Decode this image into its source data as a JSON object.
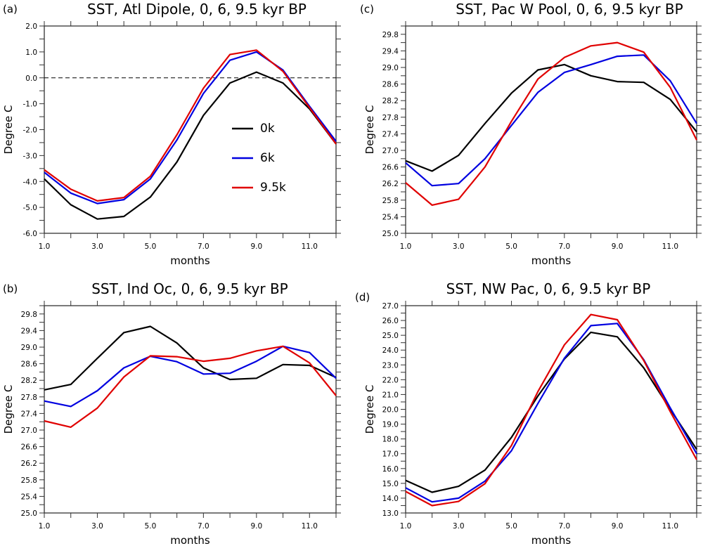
{
  "figure": {
    "series_colors": {
      "0k": "#000000",
      "6k": "#0000e0",
      "9.5k": "#e00000"
    }
  },
  "chart_data": [
    {
      "id": "a",
      "type": "line",
      "panel_label": "(a)",
      "title": "SST, Atl Dipole, 0, 6, 9.5 kyr BP",
      "xlabel": "months",
      "ylabel": "Degree C",
      "xlim": [
        1,
        12
      ],
      "ylim": [
        -6.0,
        2.0
      ],
      "xticks": [
        1.0,
        3.0,
        5.0,
        7.0,
        9.0,
        11.0
      ],
      "xtick_labels": [
        "1.0",
        "3.0",
        "5.0",
        "7.0",
        "9.0",
        "11.0"
      ],
      "yticks": [
        -6.0,
        -5.0,
        -4.0,
        -3.0,
        -2.0,
        -1.0,
        0.0,
        1.0,
        2.0
      ],
      "ytick_labels": [
        "-6.0",
        "-5.0",
        "-4.0",
        "-3.0",
        "-2.0",
        "-1.0",
        "0.0",
        "1.0",
        "2.0"
      ],
      "yminor_step": 0.5,
      "reference_line": {
        "y": 0.0,
        "style": "dashed"
      },
      "legend": {
        "placement": "center-right",
        "entries": [
          "0k",
          "6k",
          "9.5k"
        ]
      },
      "x": [
        1,
        2,
        3,
        4,
        5,
        6,
        7,
        8,
        9,
        10,
        11,
        12
      ],
      "series": [
        {
          "name": "0k",
          "color": "#000000",
          "values": [
            -3.9,
            -4.9,
            -5.45,
            -5.35,
            -4.6,
            -3.25,
            -1.45,
            -0.2,
            0.22,
            -0.2,
            -1.2,
            -2.55
          ]
        },
        {
          "name": "6k",
          "color": "#0000e0",
          "values": [
            -3.65,
            -4.45,
            -4.85,
            -4.7,
            -3.9,
            -2.4,
            -0.6,
            0.68,
            1.0,
            0.3,
            -1.1,
            -2.45
          ]
        },
        {
          "name": "9.5k",
          "color": "#e00000",
          "values": [
            -3.55,
            -4.3,
            -4.75,
            -4.62,
            -3.8,
            -2.2,
            -0.4,
            0.9,
            1.07,
            0.25,
            -1.15,
            -2.55
          ]
        }
      ]
    },
    {
      "id": "c",
      "type": "line",
      "panel_label": "(c)",
      "title": "SST, Pac W Pool, 0, 6, 9.5 kyr BP",
      "xlabel": "months",
      "ylabel": "Degree C",
      "xlim": [
        1,
        12
      ],
      "ylim": [
        25.0,
        30.0
      ],
      "xticks": [
        1.0,
        3.0,
        5.0,
        7.0,
        9.0,
        11.0
      ],
      "xtick_labels": [
        "1.0",
        "3.0",
        "5.0",
        "7.0",
        "9.0",
        "11.0"
      ],
      "yticks": [
        25.0,
        25.4,
        25.8,
        26.2,
        26.6,
        27.0,
        27.4,
        27.8,
        28.2,
        28.6,
        29.0,
        29.4,
        29.8
      ],
      "ytick_labels": [
        "25.0",
        "25.4",
        "25.8",
        "26.2",
        "26.6",
        "27.0",
        "27.4",
        "27.8",
        "28.2",
        "28.6",
        "29.0",
        "29.4",
        "29.8"
      ],
      "yminor_step": 0.2,
      "x": [
        1,
        2,
        3,
        4,
        5,
        6,
        7,
        8,
        9,
        10,
        11,
        12
      ],
      "series": [
        {
          "name": "0k",
          "color": "#000000",
          "values": [
            26.75,
            26.5,
            26.88,
            27.65,
            28.38,
            28.94,
            29.07,
            28.8,
            28.66,
            28.64,
            28.23,
            27.45
          ]
        },
        {
          "name": "6k",
          "color": "#0000e0",
          "values": [
            26.7,
            26.15,
            26.2,
            26.8,
            27.6,
            28.4,
            28.88,
            29.07,
            29.27,
            29.3,
            28.68,
            27.65
          ]
        },
        {
          "name": "9.5k",
          "color": "#e00000",
          "values": [
            26.22,
            25.68,
            25.82,
            26.6,
            27.7,
            28.72,
            29.24,
            29.52,
            29.6,
            29.37,
            28.52,
            27.25
          ]
        }
      ]
    },
    {
      "id": "b",
      "type": "line",
      "panel_label": "(b)",
      "title": "SST, Ind Oc, 0, 6, 9.5 kyr BP",
      "xlabel": "months",
      "ylabel": "Degree C",
      "xlim": [
        1,
        12
      ],
      "ylim": [
        25.0,
        30.0
      ],
      "xticks": [
        1.0,
        3.0,
        5.0,
        7.0,
        9.0,
        11.0
      ],
      "xtick_labels": [
        "1.0",
        "3.0",
        "5.0",
        "7.0",
        "9.0",
        "11.0"
      ],
      "yticks": [
        25.0,
        25.4,
        25.8,
        26.2,
        26.6,
        27.0,
        27.4,
        27.8,
        28.2,
        28.6,
        29.0,
        29.4,
        29.8
      ],
      "ytick_labels": [
        "25.0",
        "25.4",
        "25.8",
        "26.2",
        "26.6",
        "27.0",
        "27.4",
        "27.8",
        "28.2",
        "28.6",
        "29.0",
        "29.4",
        "29.8"
      ],
      "yminor_step": 0.2,
      "x": [
        1,
        2,
        3,
        4,
        5,
        6,
        7,
        8,
        9,
        10,
        11,
        12
      ],
      "series": [
        {
          "name": "0k",
          "color": "#000000",
          "values": [
            27.97,
            28.1,
            28.73,
            29.35,
            29.5,
            29.1,
            28.5,
            28.22,
            28.25,
            28.58,
            28.56,
            28.27
          ]
        },
        {
          "name": "6k",
          "color": "#0000e0",
          "values": [
            27.7,
            27.57,
            27.95,
            28.5,
            28.78,
            28.65,
            28.35,
            28.37,
            28.66,
            29.02,
            28.87,
            28.25
          ]
        },
        {
          "name": "9.5k",
          "color": "#e00000",
          "values": [
            27.22,
            27.07,
            27.53,
            28.28,
            28.79,
            28.77,
            28.66,
            28.73,
            28.91,
            29.02,
            28.62,
            27.83
          ]
        }
      ]
    },
    {
      "id": "d",
      "type": "line",
      "panel_label": "(d)",
      "title": "SST, NW Pac, 0, 6, 9.5 kyr BP",
      "xlabel": "months",
      "ylabel": "Degree C",
      "xlim": [
        1,
        12
      ],
      "ylim": [
        13.0,
        27.0
      ],
      "xticks": [
        1.0,
        3.0,
        5.0,
        7.0,
        9.0,
        11.0
      ],
      "xtick_labels": [
        "1.0",
        "3.0",
        "5.0",
        "7.0",
        "9.0",
        "11.0"
      ],
      "yticks": [
        13.0,
        14.0,
        15.0,
        16.0,
        17.0,
        18.0,
        19.0,
        20.0,
        21.0,
        22.0,
        23.0,
        24.0,
        25.0,
        26.0,
        27.0
      ],
      "ytick_labels": [
        "13.0",
        "14.0",
        "15.0",
        "16.0",
        "17.0",
        "18.0",
        "19.0",
        "20.0",
        "21.0",
        "22.0",
        "23.0",
        "24.0",
        "25.0",
        "26.0",
        "27.0"
      ],
      "yminor_step": 0.5,
      "x": [
        1,
        2,
        3,
        4,
        5,
        6,
        7,
        8,
        9,
        10,
        11,
        12
      ],
      "series": [
        {
          "name": "0k",
          "color": "#000000",
          "values": [
            15.2,
            14.4,
            14.8,
            15.9,
            18.1,
            20.9,
            23.4,
            25.2,
            24.9,
            22.8,
            20.0,
            17.3
          ]
        },
        {
          "name": "6k",
          "color": "#0000e0",
          "values": [
            14.7,
            13.75,
            14.0,
            15.15,
            17.2,
            20.4,
            23.45,
            25.65,
            25.8,
            23.35,
            20.1,
            17.0
          ]
        },
        {
          "name": "9.5k",
          "color": "#e00000",
          "values": [
            14.45,
            13.5,
            13.78,
            14.98,
            17.55,
            21.2,
            24.35,
            26.4,
            26.05,
            23.3,
            19.85,
            16.6
          ]
        }
      ]
    }
  ]
}
